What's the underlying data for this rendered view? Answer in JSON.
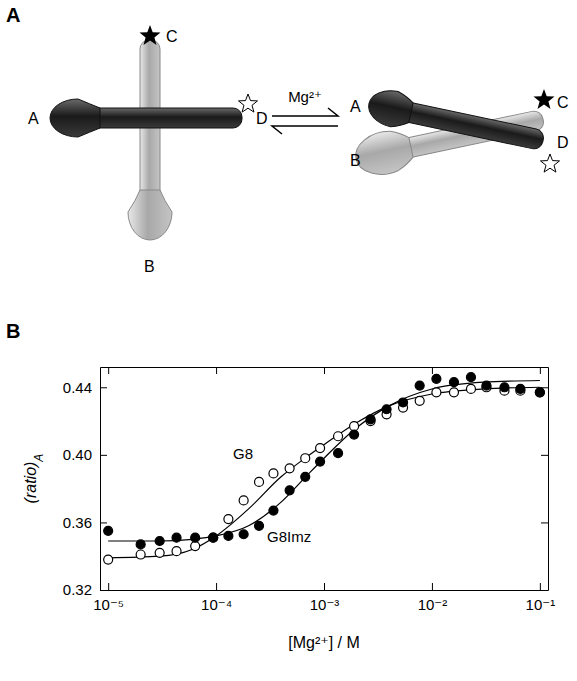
{
  "figure": {
    "panel_labels": [
      "A",
      "B"
    ]
  },
  "diagram": {
    "left": {
      "labels": [
        "A",
        "B",
        "C",
        "D"
      ]
    },
    "arrow_label": "Mg²⁺",
    "right": {
      "labels": [
        "A",
        "B",
        "C",
        "D"
      ]
    }
  },
  "chart_data": {
    "type": "scatter",
    "xlabel": "[Mg²⁺] / M",
    "ylabel": "(ratio)",
    "ylabel_sub": "A",
    "log": "x",
    "grid": false,
    "xlim": [
      8.4e-06,
      0.119
    ],
    "ylim": [
      0.32,
      0.452
    ],
    "xticks": [
      {
        "value": 1e-05,
        "label": "10⁻⁵"
      },
      {
        "value": 0.0001,
        "label": "10⁻⁴"
      },
      {
        "value": 0.001,
        "label": "10⁻³"
      },
      {
        "value": 0.01,
        "label": "10⁻²"
      },
      {
        "value": 0.1,
        "label": "10⁻¹"
      }
    ],
    "yticks": [
      0.32,
      0.36,
      {
        "value": 0.4,
        "label": "0.40"
      },
      0.44
    ],
    "x": [
      1e-05,
      2e-05,
      3e-05,
      4.3e-05,
      6.4e-05,
      9.4e-05,
      0.00013,
      0.00018,
      0.00025,
      0.00034,
      0.00048,
      0.00067,
      0.00092,
      0.00135,
      0.0019,
      0.0027,
      0.0038,
      0.0054,
      0.0077,
      0.011,
      0.016,
      0.023,
      0.032,
      0.047,
      0.066,
      0.1
    ],
    "series": [
      {
        "name": "G8",
        "color": "#000000",
        "marker": "circle-open",
        "line_style": "solid",
        "values": [
          0.338,
          0.341,
          0.342,
          0.343,
          0.346,
          0.351,
          0.362,
          0.373,
          0.384,
          0.389,
          0.392,
          0.398,
          0.404,
          0.411,
          0.417,
          0.42,
          0.424,
          0.428,
          0.432,
          0.437,
          0.437,
          0.439,
          0.44,
          0.438,
          0.438,
          0.437
        ],
        "fit": {
          "x": [
            1e-05,
            3e-05,
            6e-05,
            0.0001,
            0.0002,
            0.0004,
            0.0007,
            0.001,
            0.002,
            0.004,
            0.01,
            0.03,
            0.1
          ],
          "values": [
            0.339,
            0.34,
            0.344,
            0.352,
            0.368,
            0.387,
            0.399,
            0.406,
            0.419,
            0.429,
            0.436,
            0.439,
            0.44
          ]
        }
      },
      {
        "name": "G8Imz",
        "color": "#000000",
        "marker": "circle",
        "line_style": "solid",
        "values": [
          0.355,
          0.347,
          0.349,
          0.351,
          0.351,
          0.351,
          0.352,
          0.353,
          0.358,
          0.367,
          0.379,
          0.387,
          0.396,
          0.401,
          0.412,
          0.421,
          0.427,
          0.431,
          0.441,
          0.445,
          0.443,
          0.446,
          0.441,
          0.44,
          0.439,
          0.437
        ],
        "fit": {
          "x": [
            1e-05,
            3e-05,
            6e-05,
            0.0001,
            0.0002,
            0.0004,
            0.0007,
            0.001,
            0.002,
            0.004,
            0.01,
            0.03,
            0.1
          ],
          "values": [
            0.349,
            0.349,
            0.35,
            0.352,
            0.358,
            0.372,
            0.388,
            0.398,
            0.416,
            0.429,
            0.439,
            0.443,
            0.444
          ]
        }
      }
    ]
  }
}
